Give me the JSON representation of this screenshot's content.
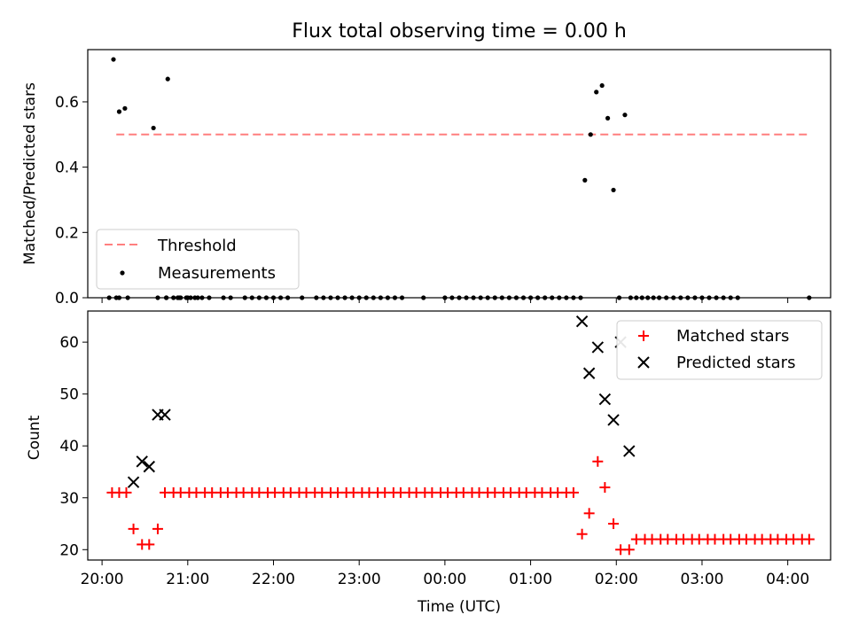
{
  "chart_data": [
    {
      "type": "scatter",
      "title": "Flux total observing time = 0.00 h",
      "xlabel": "",
      "ylabel": "Matched/Predicted stars",
      "ylim": [
        0,
        0.76
      ],
      "yticks": [
        "0.0",
        "0.2",
        "0.4",
        "0.6"
      ],
      "legend_position": "lower left",
      "threshold": {
        "name": "Threshold",
        "value": 0.5,
        "x_start": "20:10",
        "x_end": "04:15",
        "color": "#ff7f7f",
        "style": "dashed"
      },
      "series": [
        {
          "name": "Measurements",
          "color": "#000000",
          "marker": "dot",
          "x": [
            "20:08",
            "20:12",
            "20:16",
            "20:36",
            "20:46",
            "20:54",
            "21:02",
            "20:39",
            "20:45",
            "20:53",
            "20:59",
            "21:07",
            "20:05",
            "20:10",
            "20:12",
            "20:18",
            "20:45",
            "20:50",
            "20:55",
            "21:00",
            "21:05",
            "21:10",
            "21:15",
            "21:25",
            "21:30",
            "21:40",
            "21:45",
            "21:50",
            "21:55",
            "22:00",
            "22:05",
            "22:10",
            "22:20",
            "22:30",
            "22:35",
            "22:40",
            "22:45",
            "22:50",
            "22:55",
            "23:00",
            "23:05",
            "23:10",
            "23:15",
            "23:20",
            "23:25",
            "23:30",
            "23:45",
            "00:00",
            "00:05",
            "00:10",
            "00:15",
            "00:20",
            "00:25",
            "00:30",
            "00:35",
            "00:40",
            "00:45",
            "00:50",
            "00:55",
            "01:00",
            "01:05",
            "01:10",
            "01:15",
            "01:20",
            "01:25",
            "01:30",
            "01:35",
            "01:38",
            "01:42",
            "01:46",
            "01:50",
            "01:54",
            "01:58",
            "02:02",
            "02:06",
            "02:10",
            "02:14",
            "02:18",
            "02:22",
            "02:26",
            "02:30",
            "02:35",
            "02:40",
            "02:45",
            "02:50",
            "02:55",
            "03:00",
            "03:05",
            "03:10",
            "03:15",
            "03:20",
            "03:25",
            "04:15"
          ],
          "y": [
            0.73,
            0.57,
            0.58,
            0.52,
            0.67,
            0.0,
            0.0,
            0.0,
            0.0,
            0.0,
            0.0,
            0.0,
            0.0,
            0.0,
            0.0,
            0.0,
            0.0,
            0.0,
            0.0,
            0.0,
            0.0,
            0.0,
            0.0,
            0.0,
            0.0,
            0.0,
            0.0,
            0.0,
            0.0,
            0.0,
            0.0,
            0.0,
            0.0,
            0.0,
            0.0,
            0.0,
            0.0,
            0.0,
            0.0,
            0.0,
            0.0,
            0.0,
            0.0,
            0.0,
            0.0,
            0.0,
            0.0,
            0.0,
            0.0,
            0.0,
            0.0,
            0.0,
            0.0,
            0.0,
            0.0,
            0.0,
            0.0,
            0.0,
            0.0,
            0.0,
            0.0,
            0.0,
            0.0,
            0.0,
            0.0,
            0.0,
            0.0,
            0.36,
            0.5,
            0.63,
            0.65,
            0.55,
            0.33,
            0.0,
            0.56,
            0.0,
            0.0,
            0.0,
            0.0,
            0.0,
            0.0,
            0.0,
            0.0,
            0.0,
            0.0,
            0.0,
            0.0,
            0.0,
            0.0,
            0.0,
            0.0,
            0.0,
            0.0
          ]
        }
      ]
    },
    {
      "type": "scatter",
      "title": "",
      "xlabel": "Time (UTC)",
      "ylabel": "Count",
      "ylim": [
        18,
        66
      ],
      "yticks": [
        "20",
        "30",
        "40",
        "50",
        "60"
      ],
      "xticks": [
        "20:00",
        "21:00",
        "22:00",
        "23:00",
        "00:00",
        "01:00",
        "02:00",
        "03:00",
        "04:00"
      ],
      "legend_position": "upper right",
      "series": [
        {
          "name": "Matched stars",
          "color": "#ff0000",
          "marker": "plus",
          "x": [
            "20:07",
            "20:12",
            "20:17",
            "20:22",
            "20:28",
            "20:33",
            "20:39",
            "20:44",
            "20:50",
            "20:55",
            "21:01",
            "21:06",
            "21:12",
            "21:17",
            "21:23",
            "21:28",
            "21:34",
            "21:39",
            "21:45",
            "21:50",
            "21:56",
            "22:01",
            "22:07",
            "22:12",
            "22:18",
            "22:23",
            "22:29",
            "22:34",
            "22:40",
            "22:45",
            "22:51",
            "22:56",
            "23:02",
            "23:07",
            "23:13",
            "23:18",
            "23:24",
            "23:29",
            "23:35",
            "23:40",
            "23:46",
            "23:51",
            "23:57",
            "00:02",
            "00:08",
            "00:13",
            "00:19",
            "00:24",
            "00:30",
            "00:35",
            "00:41",
            "00:46",
            "00:52",
            "00:57",
            "01:03",
            "01:08",
            "01:14",
            "01:19",
            "01:25",
            "01:30",
            "01:36",
            "01:41",
            "01:47",
            "01:52",
            "01:58",
            "02:03",
            "02:09",
            "02:14",
            "02:20",
            "02:25",
            "02:31",
            "02:36",
            "02:42",
            "02:47",
            "02:53",
            "02:58",
            "03:04",
            "03:09",
            "03:15",
            "03:20",
            "03:26",
            "03:31",
            "03:37",
            "03:42",
            "03:48",
            "03:53",
            "03:59",
            "04:04",
            "04:10",
            "04:15"
          ],
          "y": [
            31,
            31,
            31,
            24,
            21,
            21,
            24,
            31,
            31,
            31,
            31,
            31,
            31,
            31,
            31,
            31,
            31,
            31,
            31,
            31,
            31,
            31,
            31,
            31,
            31,
            31,
            31,
            31,
            31,
            31,
            31,
            31,
            31,
            31,
            31,
            31,
            31,
            31,
            31,
            31,
            31,
            31,
            31,
            31,
            31,
            31,
            31,
            31,
            31,
            31,
            31,
            31,
            31,
            31,
            31,
            31,
            31,
            31,
            31,
            31,
            23,
            27,
            37,
            32,
            25,
            20,
            20,
            22,
            22,
            22,
            22,
            22,
            22,
            22,
            22,
            22,
            22,
            22,
            22,
            22,
            22,
            22,
            22,
            22,
            22,
            22,
            22,
            22,
            22,
            22
          ]
        },
        {
          "name": "Predicted stars",
          "color": "#000000",
          "marker": "x",
          "x": [
            "20:22",
            "20:28",
            "20:33",
            "20:39",
            "20:44",
            "01:36",
            "01:41",
            "01:47",
            "01:52",
            "01:58",
            "02:03",
            "02:09"
          ],
          "y": [
            33,
            37,
            36,
            46,
            46,
            64,
            54,
            59,
            49,
            45,
            60,
            39
          ]
        }
      ]
    }
  ]
}
